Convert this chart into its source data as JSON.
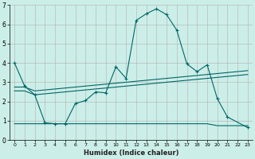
{
  "xlabel": "Humidex (Indice chaleur)",
  "bg_color": "#cceee8",
  "line_color": "#006666",
  "grid_color": "#b0b0b0",
  "xlim": [
    -0.5,
    23.5
  ],
  "ylim": [
    0,
    7
  ],
  "x": [
    0,
    1,
    2,
    3,
    4,
    5,
    6,
    7,
    8,
    9,
    10,
    11,
    12,
    13,
    14,
    15,
    16,
    17,
    18,
    19,
    20,
    21,
    22,
    23
  ],
  "curve1": [
    4.0,
    2.8,
    2.35,
    0.9,
    0.85,
    0.85,
    1.9,
    2.05,
    2.5,
    2.45,
    3.8,
    3.2,
    6.2,
    6.55,
    6.8,
    6.5,
    5.7,
    3.95,
    3.55,
    3.9,
    2.15,
    1.2,
    null,
    0.65
  ],
  "line1": [
    2.75,
    2.75,
    2.55,
    2.6,
    2.65,
    2.7,
    2.75,
    2.8,
    2.85,
    2.9,
    2.95,
    3.0,
    3.05,
    3.1,
    3.15,
    3.2,
    3.25,
    3.3,
    3.35,
    3.4,
    3.45,
    3.5,
    3.55,
    3.6
  ],
  "line2": [
    2.55,
    2.55,
    2.35,
    2.4,
    2.45,
    2.5,
    2.55,
    2.6,
    2.65,
    2.7,
    2.75,
    2.8,
    2.85,
    2.9,
    2.95,
    3.0,
    3.05,
    3.1,
    3.15,
    3.2,
    3.25,
    3.3,
    3.35,
    3.4
  ],
  "line3": [
    0.85,
    0.85,
    0.85,
    0.85,
    0.85,
    0.85,
    0.85,
    0.85,
    0.85,
    0.85,
    0.85,
    0.85,
    0.85,
    0.85,
    0.85,
    0.85,
    0.85,
    0.85,
    0.85,
    0.85,
    0.75,
    0.75,
    0.75,
    0.75
  ],
  "yticks": [
    0,
    1,
    2,
    3,
    4,
    5,
    6,
    7
  ],
  "xticks": [
    0,
    1,
    2,
    3,
    4,
    5,
    6,
    7,
    8,
    9,
    10,
    11,
    12,
    13,
    14,
    15,
    16,
    17,
    18,
    19,
    20,
    21,
    22,
    23
  ]
}
